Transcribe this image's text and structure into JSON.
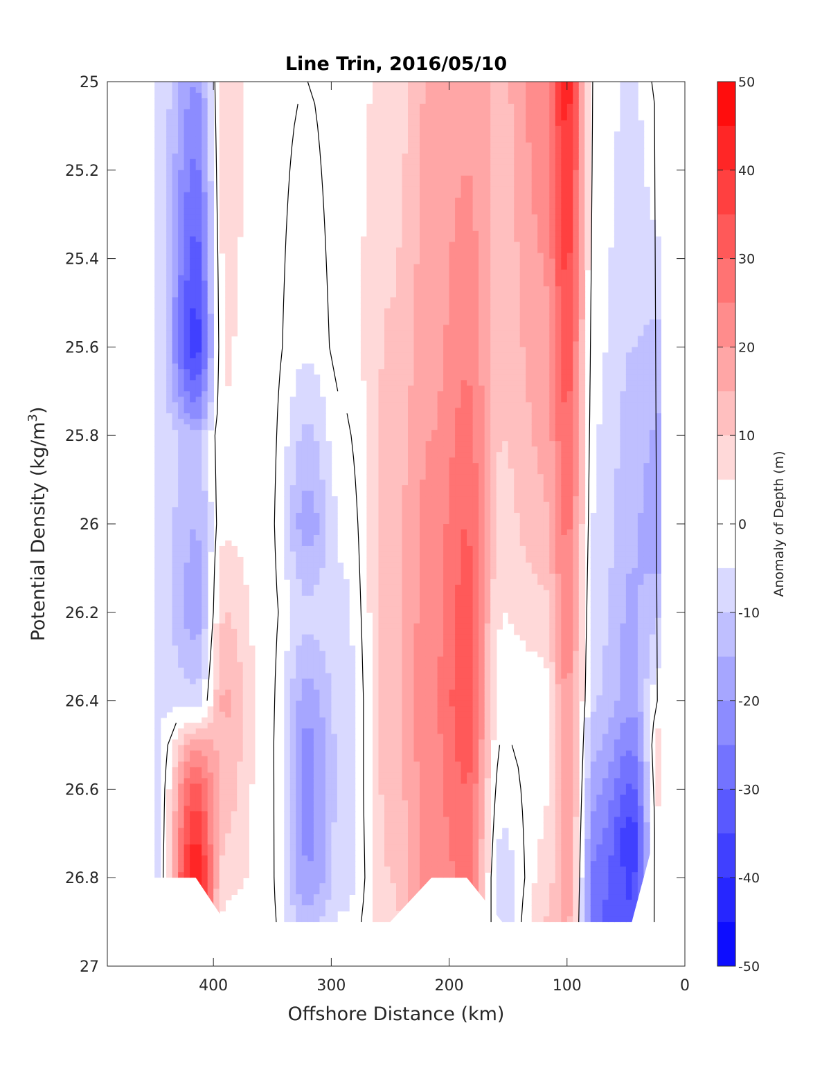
{
  "chart_data": {
    "type": "heatmap",
    "title": "Line Trin, 2016/05/10",
    "xlabel": "Offshore Distance (km)",
    "ylabel_main": "Potential Density (kg/m",
    "ylabel_sup": "3",
    "ylabel_end": ")",
    "xlim": [
      490,
      0
    ],
    "ylim": [
      25,
      27
    ],
    "x_reversed": true,
    "y_reversed": true,
    "x_ticks": [
      400,
      300,
      200,
      100,
      0
    ],
    "x_tick_labels": [
      "400",
      "300",
      "200",
      "100",
      "0"
    ],
    "y_ticks": [
      25,
      25.2,
      25.4,
      25.6,
      25.8,
      26,
      26.2,
      26.4,
      26.6,
      26.8,
      27
    ],
    "y_tick_labels": [
      "25",
      "25.2",
      "25.4",
      "25.6",
      "25.8",
      "26",
      "26.2",
      "26.4",
      "26.6",
      "26.8",
      "27"
    ],
    "grid": false,
    "colorbar": {
      "label": "Anomaly of Depth (m)",
      "range": [
        -50,
        50
      ],
      "level_step": 5,
      "ticks": [
        50,
        40,
        30,
        20,
        10,
        0,
        -10,
        -20,
        -30,
        -40,
        -50
      ],
      "tick_labels": [
        "50",
        "40",
        "30",
        "20",
        "10",
        "0",
        "-10",
        "-20",
        "-30",
        "-40",
        "-50"
      ],
      "colors_high": "#ff0000",
      "colors_mid": "#ffffff",
      "colors_low": "#0000ff"
    },
    "zero_contour_color": "#000000",
    "columns": [
      {
        "x": 450,
        "ymax": 26.8,
        "values": [
          [
            25,
            -5
          ],
          [
            26.8,
            -6
          ]
        ]
      },
      {
        "x": 415,
        "ymax": 26.8,
        "values": [
          [
            25,
            -20
          ],
          [
            25.4,
            -32
          ],
          [
            25.6,
            -38
          ],
          [
            25.75,
            -22
          ],
          [
            25.8,
            -12
          ],
          [
            26.2,
            -18
          ],
          [
            26.4,
            -8
          ],
          [
            26.5,
            18
          ],
          [
            26.6,
            32
          ],
          [
            26.8,
            46
          ]
        ]
      },
      {
        "x": 390,
        "ymax": 26.9,
        "values": [
          [
            25,
            8
          ],
          [
            25.4,
            6
          ],
          [
            26,
            4
          ],
          [
            26.4,
            16
          ],
          [
            26.8,
            8
          ],
          [
            26.9,
            2
          ]
        ]
      },
      {
        "x": 355,
        "ymax": 26.9,
        "values": [
          [
            25,
            2
          ],
          [
            25.6,
            2
          ],
          [
            26,
            2
          ],
          [
            26.4,
            2
          ],
          [
            26.8,
            2
          ],
          [
            26.9,
            2
          ]
        ]
      },
      {
        "x": 320,
        "ymax": 26.9,
        "values": [
          [
            25,
            0
          ],
          [
            25.6,
            -4
          ],
          [
            26,
            -18
          ],
          [
            26.2,
            -8
          ],
          [
            26.5,
            -22
          ],
          [
            26.8,
            -20
          ],
          [
            26.9,
            -12
          ]
        ]
      },
      {
        "x": 290,
        "ymax": 26.9,
        "values": [
          [
            25,
            3
          ],
          [
            25.6,
            2
          ],
          [
            26,
            -4
          ],
          [
            26.4,
            -8
          ],
          [
            26.8,
            -8
          ],
          [
            26.9,
            -4
          ]
        ]
      },
      {
        "x": 250,
        "ymax": 26.9,
        "values": [
          [
            25,
            6
          ],
          [
            25.5,
            10
          ],
          [
            26,
            13
          ],
          [
            26.4,
            12
          ],
          [
            26.6,
            12
          ],
          [
            26.8,
            10
          ],
          [
            26.9,
            8
          ]
        ]
      },
      {
        "x": 215,
        "ymax": 26.8,
        "values": [
          [
            25,
            16
          ],
          [
            25.6,
            18
          ],
          [
            26,
            22
          ],
          [
            26.4,
            24
          ],
          [
            26.8,
            22
          ]
        ]
      },
      {
        "x": 185,
        "ymax": 26.8,
        "values": [
          [
            25,
            18
          ],
          [
            25.6,
            24
          ],
          [
            26,
            30
          ],
          [
            26.4,
            34
          ],
          [
            26.6,
            30
          ],
          [
            26.8,
            26
          ]
        ]
      },
      {
        "x": 155,
        "ymax": 26.9,
        "values": [
          [
            25,
            14
          ],
          [
            25.6,
            12
          ],
          [
            26,
            8
          ],
          [
            26.4,
            2
          ],
          [
            26.8,
            -8
          ],
          [
            26.9,
            -8
          ]
        ]
      },
      {
        "x": 120,
        "ymax": 26.9,
        "values": [
          [
            25,
            24
          ],
          [
            25.4,
            20
          ],
          [
            26,
            14
          ],
          [
            26.4,
            2
          ],
          [
            26.8,
            6
          ],
          [
            26.9,
            10
          ]
        ]
      },
      {
        "x": 100,
        "ymax": 26.9,
        "values": [
          [
            25,
            42
          ],
          [
            25.4,
            36
          ],
          [
            26,
            26
          ],
          [
            26.4,
            20
          ],
          [
            26.8,
            18
          ],
          [
            26.9,
            16
          ]
        ]
      },
      {
        "x": 75,
        "ymax": 26.9,
        "values": [
          [
            25,
            -2
          ],
          [
            25.6,
            -4
          ],
          [
            26,
            -6
          ],
          [
            26.4,
            -10
          ],
          [
            26.8,
            -28
          ],
          [
            26.9,
            -30
          ]
        ]
      },
      {
        "x": 45,
        "ymax": 26.9,
        "values": [
          [
            25,
            -6
          ],
          [
            25.4,
            -8
          ],
          [
            25.6,
            -10
          ],
          [
            26,
            -14
          ],
          [
            26.4,
            -18
          ],
          [
            26.7,
            -38
          ],
          [
            26.9,
            -34
          ]
        ]
      },
      {
        "x": 20,
        "ymax": 26.65,
        "values": [
          [
            25,
            2
          ],
          [
            25.4,
            -6
          ],
          [
            25.6,
            -12
          ],
          [
            26,
            -20
          ],
          [
            26.3,
            -6
          ],
          [
            26.5,
            8
          ],
          [
            26.65,
            6
          ]
        ]
      }
    ]
  }
}
